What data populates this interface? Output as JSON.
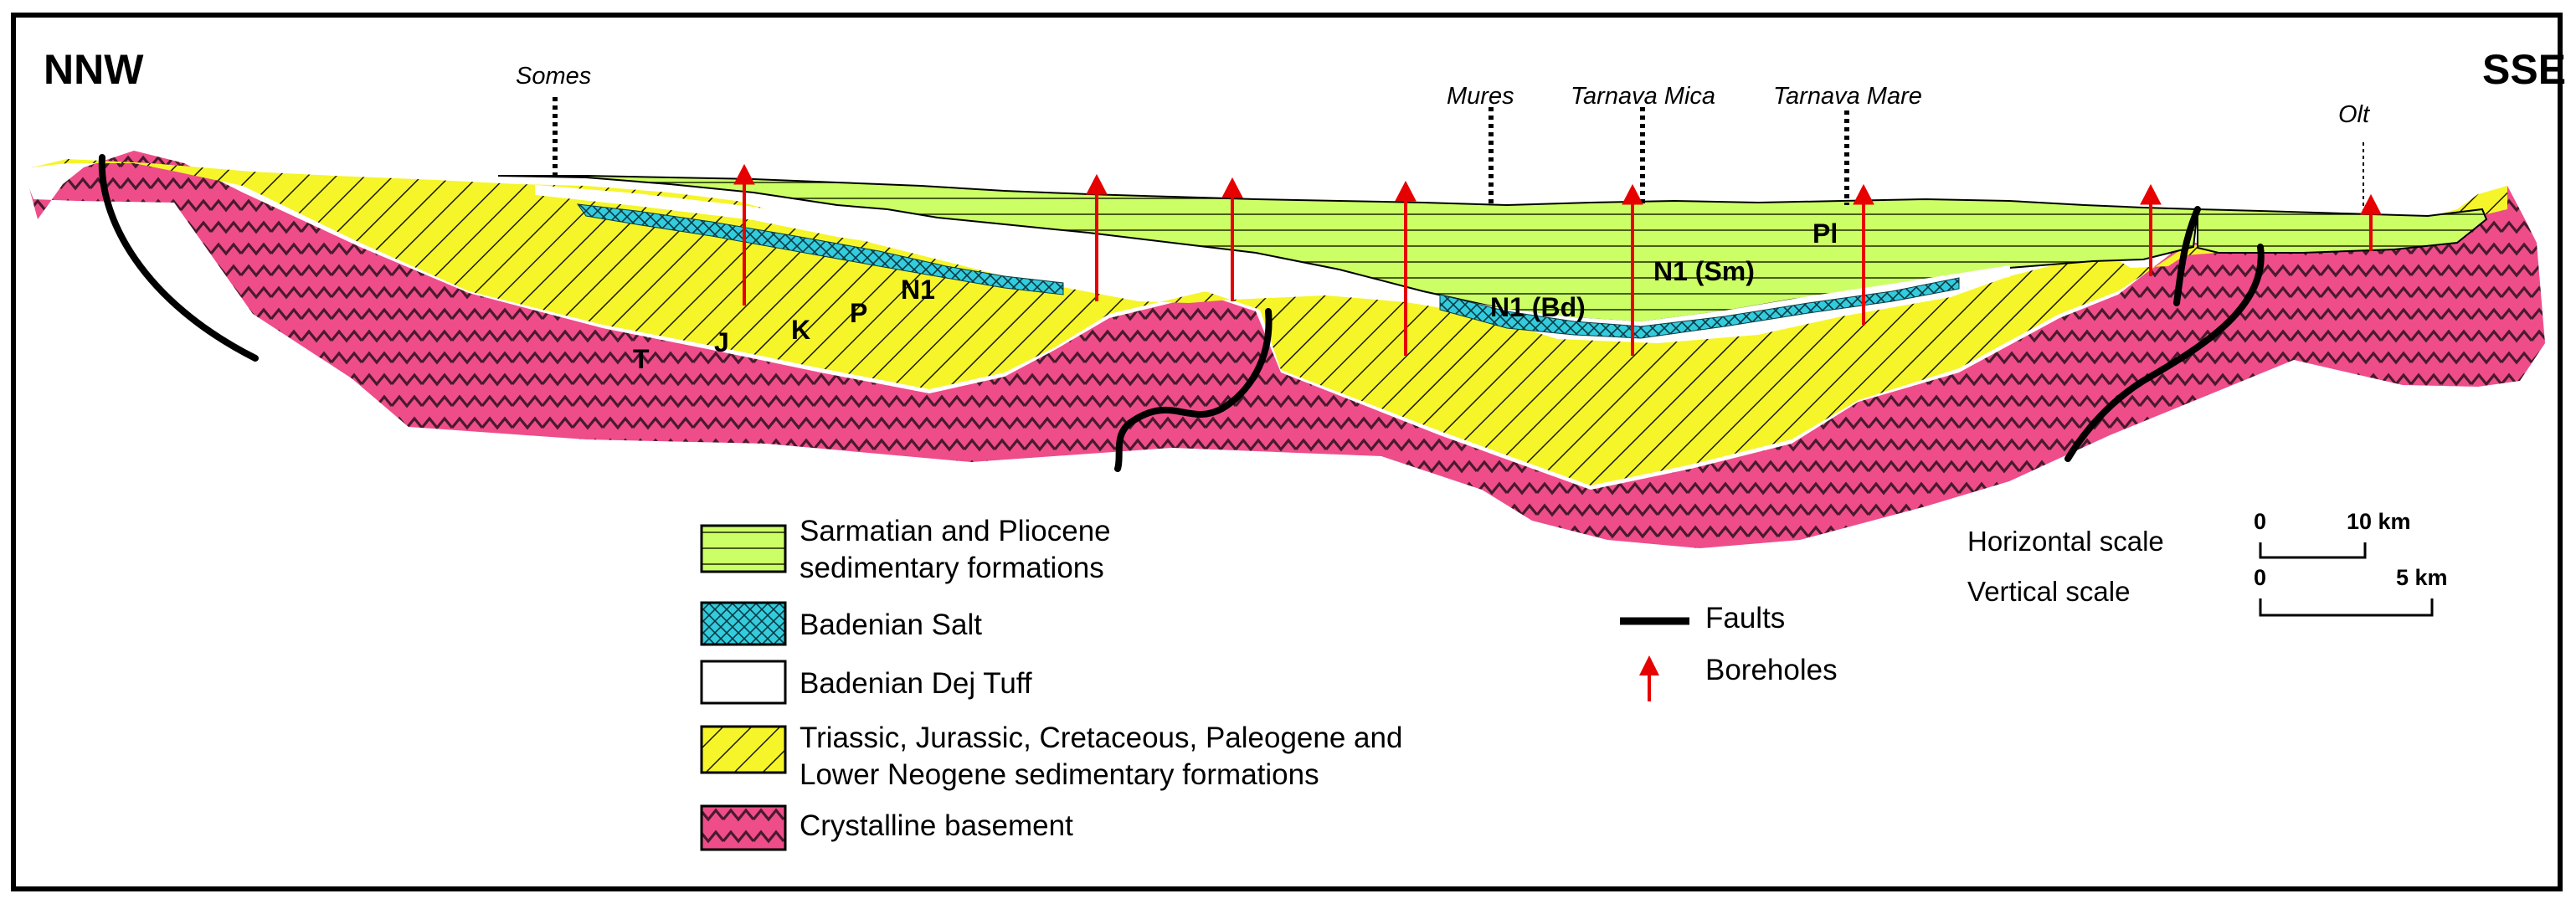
{
  "figure": {
    "direction_left": "NNW",
    "direction_right": "SSE"
  },
  "rivers": [
    "Somes",
    "Mures",
    "Tarnava Mica",
    "Tarnava Mare",
    "Olt"
  ],
  "strata_labels": [
    "T",
    "J",
    "K",
    "P",
    "N1",
    "N1 (Bd)",
    "N1 (Sm)",
    "Pl"
  ],
  "legend": {
    "items": [
      {
        "lines": [
          "Sarmatian and Pliocene",
          "sedimentary formations"
        ],
        "pattern": "horizontal-lines",
        "color": "#ccff66"
      },
      {
        "lines": [
          "Badenian Salt"
        ],
        "pattern": "crosshatch",
        "color": "#33ccdd"
      },
      {
        "lines": [
          "Badenian Dej Tuff"
        ],
        "pattern": "none",
        "color": "#ffffff"
      },
      {
        "lines": [
          "Triassic, Jurassic, Cretaceous, Paleogene and",
          "Lower Neogene sedimentary formations"
        ],
        "pattern": "diagonal-lines",
        "color": "#f5f52a"
      },
      {
        "lines": [
          "Crystalline basement"
        ],
        "pattern": "zigzag",
        "color": "#ee4d8a"
      }
    ],
    "symbols": [
      {
        "label": "Faults",
        "icon": "fault-line-icon",
        "color": "#000000"
      },
      {
        "label": "Boreholes",
        "icon": "borehole-arrow-icon",
        "color": "#e60000"
      }
    ]
  },
  "scale": {
    "horizontal_label": "Horizontal scale",
    "vertical_label": "Vertical scale",
    "horizontal_start": "0",
    "horizontal_end": "10 km",
    "vertical_start": "0",
    "vertical_end": "5 km"
  },
  "colors": {
    "basement": "#ee4d8a",
    "mesozoic": "#f5f52a",
    "sarmatian": "#ccff66",
    "salt": "#33ccdd",
    "borehole": "#e60000"
  }
}
